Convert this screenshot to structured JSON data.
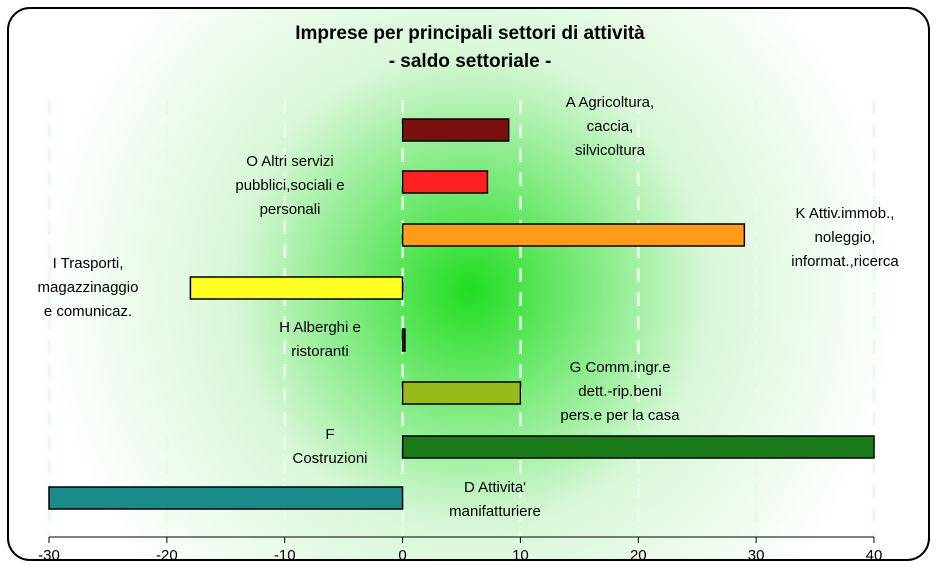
{
  "chart_data": {
    "type": "barh",
    "title": "Imprese per principali settori di attività",
    "subtitle": "- saldo settoriale -",
    "categories": [
      "A Agricoltura,\ncaccia,\nsilvicoltura",
      "O Altri servizi\npubblici,sociali e\npersonali",
      "K Attiv.immob.,\nnoleggio,\ninformat.,ricerca",
      "I Trasporti,\nmagazzinaggio\ne comunicaz.",
      "H Alberghi e\nristoranti",
      "G Comm.ingr.e\ndett.-rip.beni\npers.e per la casa",
      "F\nCostruzioni",
      "D Attivita'\nmanifatturiere"
    ],
    "values": [
      9,
      7.2,
      29,
      -18,
      0.2,
      10,
      40,
      -30
    ],
    "colors": [
      "#7b1010",
      "#ff2020",
      "#ff9a1a",
      "#ffff22",
      "#333333",
      "#99bb1a",
      "#1a7a1a",
      "#1a8a8a"
    ],
    "xlim": [
      -30,
      40
    ],
    "xticks": [
      -30,
      -20,
      -10,
      0,
      10,
      20,
      30,
      40
    ],
    "grid": true
  }
}
